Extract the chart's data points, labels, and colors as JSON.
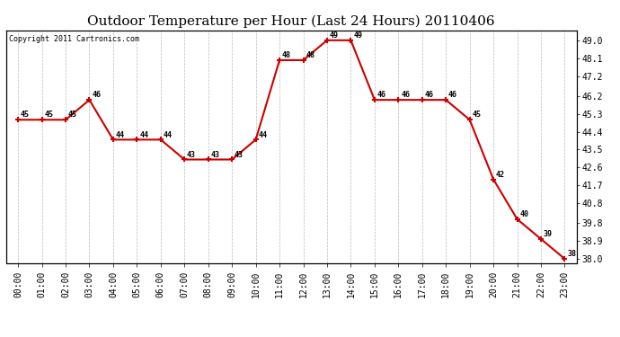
{
  "title": "Outdoor Temperature per Hour (Last 24 Hours) 20110406",
  "copyright_text": "Copyright 2011 Cartronics.com",
  "hours": [
    0,
    1,
    2,
    3,
    4,
    5,
    6,
    7,
    8,
    9,
    10,
    11,
    12,
    13,
    14,
    15,
    16,
    17,
    18,
    19,
    20,
    21,
    22,
    23
  ],
  "temps": [
    45,
    45,
    45,
    46,
    44,
    44,
    44,
    43,
    43,
    43,
    44,
    48,
    48,
    49,
    49,
    46,
    46,
    46,
    46,
    45,
    42,
    40,
    39,
    38
  ],
  "x_labels": [
    "00:00",
    "01:00",
    "02:00",
    "03:00",
    "04:00",
    "05:00",
    "06:00",
    "07:00",
    "08:00",
    "09:00",
    "10:00",
    "11:00",
    "12:00",
    "13:00",
    "14:00",
    "15:00",
    "16:00",
    "17:00",
    "18:00",
    "19:00",
    "20:00",
    "21:00",
    "22:00",
    "23:00"
  ],
  "line_color": "#cc0000",
  "marker_color": "#cc0000",
  "bg_color": "#ffffff",
  "grid_color": "#aaaaaa",
  "y_right_ticks": [
    49.0,
    48.1,
    47.2,
    46.2,
    45.3,
    44.4,
    43.5,
    42.6,
    41.7,
    40.8,
    39.8,
    38.9,
    38.0
  ],
  "y_min": 37.8,
  "y_max": 49.5,
  "title_fontsize": 11,
  "label_fontsize": 6,
  "copyright_fontsize": 6,
  "tick_fontsize": 7
}
